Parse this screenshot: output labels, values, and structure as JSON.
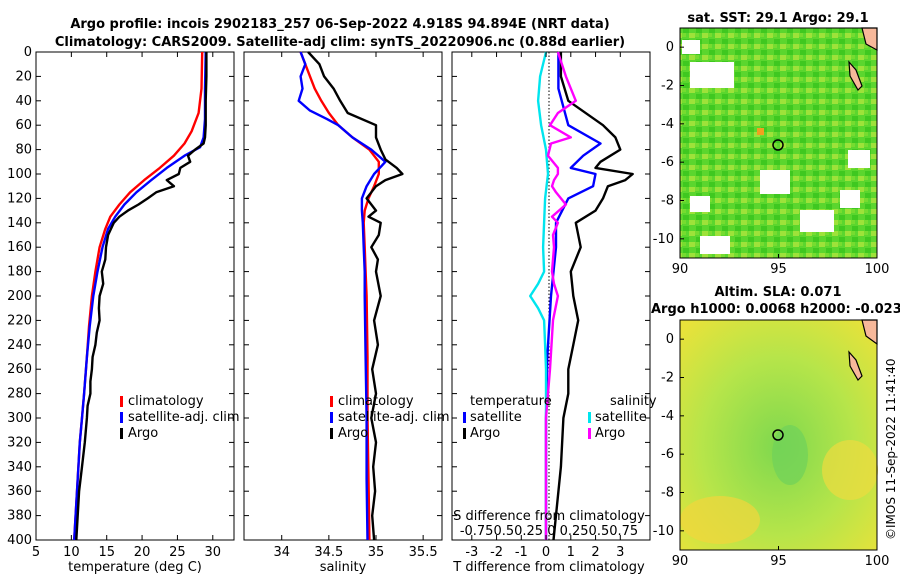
{
  "titles": {
    "line1": "Argo profile: incois 2902183_257 06-Sep-2022 4.918S 94.894E (NRT data)",
    "line2": "Climatology: CARS2009. Satellite-adj clim: synTS_20220906.nc (0.88d earlier)",
    "sst": "sat. SST: 29.1 Argo: 29.1",
    "sla1": "Altim. SLA: 0.071",
    "sla2": "Argo h1000: 0.0068 h2000: -0.023",
    "watermark": "©IMOS 11-Sep-2022 11:41:40"
  },
  "colors": {
    "climatology": "#ff0000",
    "satellite": "#0000ff",
    "argo": "#000000",
    "s_satellite": "#00e5ee",
    "s_argo": "#ff00ff"
  },
  "chart_data": [
    {
      "type": "line",
      "panel": "temperature",
      "xlabel": "temperature (deg C)",
      "ylabel": "",
      "xlim": [
        5,
        33
      ],
      "ylim": [
        400,
        0
      ],
      "xticks": [
        5,
        10,
        15,
        20,
        25,
        30
      ],
      "yticks": [
        0,
        20,
        40,
        60,
        80,
        100,
        120,
        140,
        160,
        180,
        200,
        220,
        240,
        260,
        280,
        300,
        320,
        340,
        360,
        380,
        400
      ],
      "legend": [
        "climatology",
        "satellite-adj. clim",
        "Argo"
      ],
      "series": [
        {
          "name": "climatology",
          "depth": [
            0,
            30,
            50,
            65,
            75,
            85,
            95,
            105,
            115,
            125,
            135,
            145,
            160,
            180,
            200,
            225,
            250,
            280,
            300,
            320,
            350,
            380,
            400
          ],
          "values": [
            28.5,
            28.4,
            28.0,
            27.0,
            26.0,
            24.5,
            22.5,
            20.3,
            18.3,
            16.8,
            15.5,
            14.8,
            14.0,
            13.4,
            12.9,
            12.5,
            12.2,
            11.8,
            11.5,
            11.2,
            10.9,
            10.6,
            10.4
          ]
        },
        {
          "name": "satellite-adj. clim",
          "depth": [
            0,
            30,
            55,
            70,
            78,
            85,
            95,
            105,
            115,
            125,
            135,
            145,
            160,
            180,
            200,
            225,
            250,
            280,
            300,
            320,
            350,
            380,
            400
          ],
          "values": [
            29.0,
            28.9,
            28.9,
            28.7,
            28.2,
            26.0,
            23.5,
            21.3,
            19.2,
            17.5,
            16.2,
            15.2,
            14.4,
            13.7,
            13.1,
            12.6,
            12.2,
            11.8,
            11.5,
            11.2,
            10.9,
            10.6,
            10.4
          ]
        },
        {
          "name": "Argo",
          "depth": [
            0,
            20,
            40,
            60,
            70,
            75,
            80,
            85,
            90,
            95,
            100,
            105,
            110,
            115,
            120,
            125,
            130,
            135,
            140,
            150,
            160,
            170,
            180,
            190,
            200,
            210,
            220,
            230,
            240,
            250,
            260,
            270,
            280,
            290,
            300,
            320,
            340,
            360,
            380,
            400
          ],
          "values": [
            29.1,
            29.1,
            29.0,
            29.0,
            28.9,
            28.7,
            27.5,
            26.5,
            26.8,
            25.4,
            25.2,
            23.5,
            24.5,
            22.0,
            20.8,
            19.5,
            18.0,
            16.8,
            16.0,
            15.2,
            14.9,
            14.8,
            14.3,
            14.5,
            14.0,
            13.9,
            14.0,
            13.6,
            13.4,
            13.0,
            12.9,
            12.7,
            12.7,
            12.3,
            12.2,
            11.9,
            11.5,
            11.1,
            10.9,
            10.7
          ]
        }
      ]
    },
    {
      "type": "line",
      "panel": "salinity",
      "xlabel": "salinity",
      "xlim": [
        33.6,
        35.7
      ],
      "ylim": [
        400,
        0
      ],
      "xticks": [
        34,
        34.5,
        35,
        35.5
      ],
      "legend": [
        "climatology",
        "satellite-adj. clim",
        "Argo"
      ],
      "series": [
        {
          "name": "climatology",
          "depth": [
            0,
            10,
            20,
            30,
            40,
            50,
            60,
            70,
            80,
            90,
            100,
            110,
            120,
            130,
            140,
            160,
            180,
            200,
            250,
            300,
            350,
            400
          ],
          "values": [
            34.2,
            34.25,
            34.3,
            34.35,
            34.42,
            34.5,
            34.6,
            34.75,
            34.93,
            35.03,
            35.03,
            34.98,
            34.92,
            34.88,
            34.87,
            34.88,
            34.89,
            34.9,
            34.91,
            34.91,
            34.92,
            34.93
          ]
        },
        {
          "name": "satellite-adj. clim",
          "depth": [
            0,
            10,
            20,
            30,
            40,
            48,
            55,
            60,
            70,
            80,
            90,
            100,
            110,
            120,
            130,
            140,
            160,
            180,
            200,
            250,
            300,
            350,
            400
          ],
          "values": [
            34.2,
            34.25,
            34.2,
            34.22,
            34.18,
            34.3,
            34.48,
            34.6,
            34.75,
            34.95,
            35.1,
            34.98,
            34.9,
            34.85,
            34.85,
            34.86,
            34.87,
            34.88,
            34.88,
            34.89,
            34.9,
            34.9,
            34.91
          ]
        },
        {
          "name": "Argo",
          "depth": [
            0,
            10,
            20,
            30,
            40,
            50,
            60,
            70,
            80,
            88,
            95,
            100,
            105,
            110,
            115,
            120,
            125,
            130,
            135,
            140,
            150,
            160,
            170,
            180,
            200,
            220,
            240,
            260,
            280,
            300,
            320,
            340,
            360,
            380,
            400
          ],
          "values": [
            34.28,
            34.4,
            34.45,
            34.55,
            34.62,
            34.7,
            35.0,
            35.0,
            35.05,
            35.1,
            35.22,
            35.28,
            35.1,
            35.0,
            34.95,
            34.9,
            34.95,
            35.0,
            34.92,
            35.05,
            35.03,
            34.95,
            35.02,
            35.0,
            35.05,
            34.98,
            35.02,
            34.96,
            35.0,
            34.95,
            35.0,
            34.97,
            34.99,
            34.96,
            34.98
          ]
        }
      ]
    },
    {
      "type": "line",
      "panel": "difference",
      "xlabel": "T difference from climatology",
      "top_axis_label": "S difference from climatology",
      "top_tick_text": "-0.750.50.25 0 0.250.50.75",
      "xlim": [
        -3.8,
        4.2
      ],
      "ylim": [
        400,
        0
      ],
      "xticks": [
        -3,
        -2,
        -1,
        0,
        1,
        2,
        3
      ],
      "s_scale_factor": 4,
      "legend_titles": [
        "temperature",
        "salinity"
      ],
      "legend": [
        "satellite",
        "Argo",
        "satellite",
        "Argo"
      ],
      "series": [
        {
          "name": "T satellite",
          "depth": [
            0,
            30,
            60,
            75,
            85,
            95,
            100,
            110,
            120,
            140,
            160,
            180,
            200,
            250,
            300,
            350,
            400
          ],
          "values": [
            0.5,
            0.5,
            0.9,
            2.2,
            1.5,
            1.0,
            2.0,
            1.9,
            0.9,
            0.4,
            0.4,
            0.3,
            0.2,
            0.05,
            0.0,
            0.0,
            0.0
          ]
        },
        {
          "name": "T Argo",
          "depth": [
            0,
            20,
            40,
            60,
            70,
            80,
            90,
            95,
            100,
            105,
            110,
            120,
            130,
            140,
            160,
            180,
            200,
            220,
            240,
            260,
            280,
            300,
            340,
            400
          ],
          "values": [
            0.6,
            0.6,
            0.9,
            2.3,
            2.8,
            3.0,
            2.2,
            2.0,
            3.5,
            3.2,
            2.5,
            2.3,
            2.0,
            1.2,
            1.4,
            1.0,
            1.1,
            1.3,
            1.1,
            0.9,
            0.9,
            0.7,
            0.6,
            0.3
          ]
        },
        {
          "name": "S satellite",
          "depth": [
            0,
            20,
            40,
            60,
            80,
            100,
            120,
            140,
            160,
            180,
            190,
            200,
            210,
            220,
            240,
            260,
            300,
            350,
            400
          ],
          "values": [
            0.0,
            -0.06,
            -0.08,
            -0.05,
            0.0,
            0.02,
            -0.01,
            -0.02,
            -0.03,
            -0.02,
            -0.08,
            -0.16,
            -0.08,
            -0.02,
            -0.01,
            0.0,
            0.0,
            0.0,
            0.0
          ]
        },
        {
          "name": "S Argo",
          "depth": [
            0,
            20,
            40,
            50,
            60,
            70,
            75,
            85,
            95,
            100,
            105,
            110,
            115,
            125,
            135,
            140,
            150,
            160,
            170,
            180,
            190,
            200,
            220,
            260,
            300,
            350,
            400
          ],
          "values": [
            0.12,
            0.2,
            0.3,
            0.12,
            0.04,
            0.25,
            0.05,
            0.02,
            0.12,
            0.12,
            0.08,
            0.06,
            0.1,
            0.2,
            0.06,
            0.12,
            0.07,
            0.08,
            0.07,
            0.06,
            0.08,
            0.12,
            0.07,
            0.04,
            0.0,
            0.0,
            0.0
          ]
        }
      ]
    },
    {
      "type": "heatmap",
      "panel": "sst-map",
      "title": "sat. SST: 29.1 Argo: 29.1",
      "xlim": [
        90,
        100
      ],
      "ylim": [
        -11,
        1
      ],
      "xticks": [
        90,
        95,
        100
      ],
      "yticks": [
        0,
        -2,
        -4,
        -6,
        -8,
        -10
      ],
      "marker": {
        "lon": 94.894,
        "lat": -4.918
      }
    },
    {
      "type": "heatmap",
      "panel": "sla-map",
      "title": "Altim. SLA: 0.071",
      "xlim": [
        90,
        100
      ],
      "ylim": [
        -11,
        1
      ],
      "xticks": [
        90,
        95,
        100
      ],
      "yticks": [
        0,
        -2,
        -4,
        -6,
        -8,
        -10
      ],
      "marker": {
        "lon": 94.894,
        "lat": -4.918
      }
    }
  ]
}
